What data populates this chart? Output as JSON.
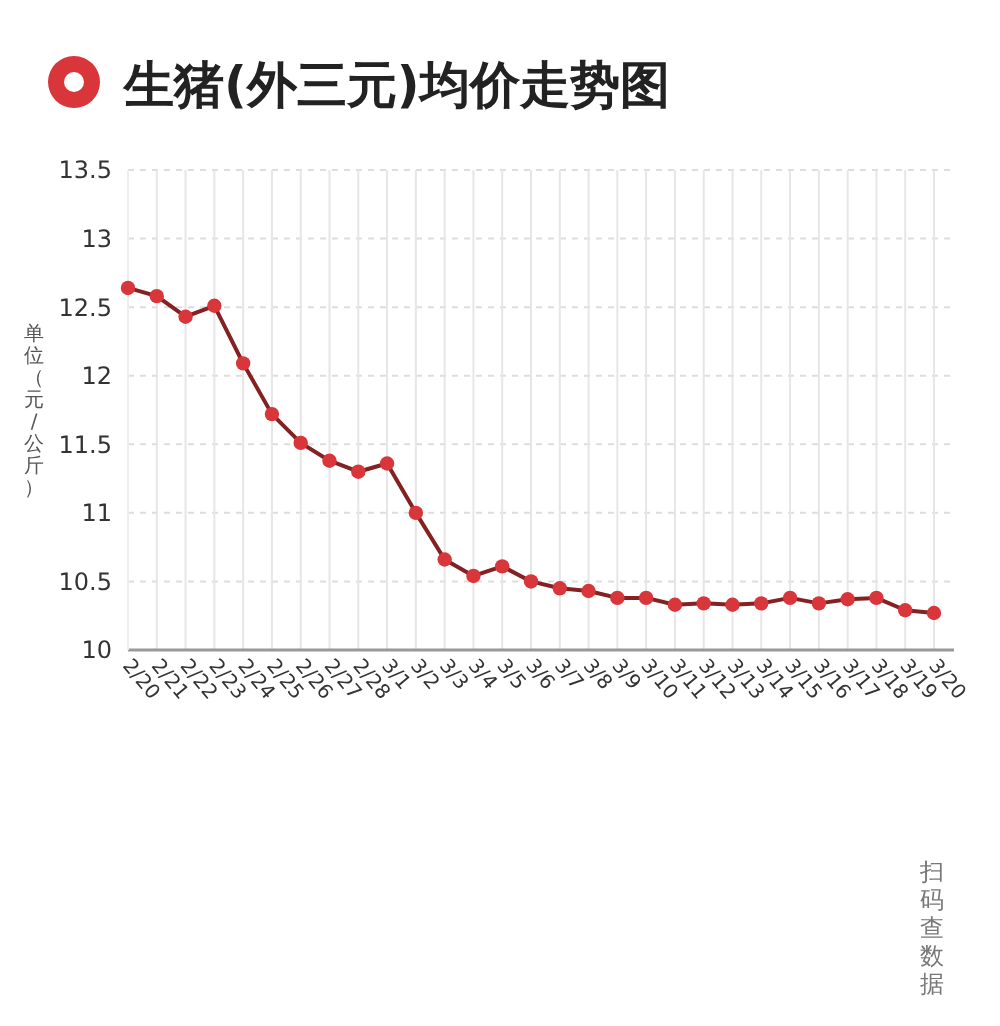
{
  "chart_data": {
    "type": "line",
    "title": "生猪(外三元)均价走势图",
    "ylabel": "单位（元/公斤）",
    "categories": [
      "2/20",
      "2/21",
      "2/22",
      "2/23",
      "2/24",
      "2/25",
      "2/26",
      "2/27",
      "2/28",
      "3/1",
      "3/2",
      "3/3",
      "3/4",
      "3/5",
      "3/6",
      "3/7",
      "3/8",
      "3/9",
      "3/10",
      "3/11",
      "3/12",
      "3/13",
      "3/14",
      "3/15",
      "3/16",
      "3/17",
      "3/18",
      "3/19",
      "3/20"
    ],
    "series": [
      {
        "color": "#d8363a",
        "values": [
          12.64,
          12.58,
          12.43,
          12.51,
          12.09,
          11.72,
          11.51,
          11.38,
          11.3,
          11.36,
          11.0,
          10.66,
          10.54,
          10.61,
          10.5,
          10.45,
          10.43,
          10.38,
          10.38,
          10.33,
          10.34,
          10.33,
          10.34,
          10.38,
          10.34,
          10.37,
          10.38,
          10.29,
          10.27
        ]
      }
    ],
    "ylim": [
      10,
      13.5
    ],
    "yticks": [
      10,
      10.5,
      11,
      11.5,
      12,
      12.5,
      13,
      13.5
    ],
    "grid": true,
    "marker": "circle",
    "line_style": "solid",
    "annotations": [
      "扫码查数据"
    ]
  }
}
